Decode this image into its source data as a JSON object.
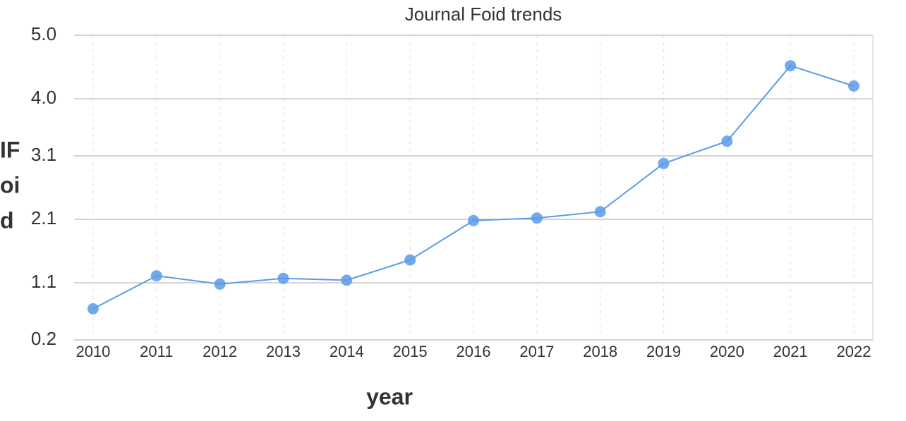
{
  "chart_data": {
    "type": "line",
    "title": "Journal Foid trends",
    "x_label": "year",
    "y_label_lines": [
      "IF",
      "oi",
      "d"
    ],
    "x": [
      2010,
      2011,
      2012,
      2013,
      2014,
      2015,
      2016,
      2017,
      2018,
      2019,
      2020,
      2021,
      2022
    ],
    "series": [
      {
        "name": "IF",
        "color": "#5b9be8",
        "values": [
          0.69,
          1.21,
          1.08,
          1.17,
          1.14,
          1.46,
          2.08,
          2.12,
          2.22,
          2.98,
          3.33,
          4.52,
          4.2
        ]
      }
    ],
    "xlim": [
      2009.7,
      2022.3
    ],
    "xticks": [
      2010,
      2011,
      2012,
      2013,
      2014,
      2015,
      2016,
      2017,
      2018,
      2019,
      2020,
      2021,
      2022
    ],
    "ylim": [
      0.2,
      5.0
    ],
    "yticks": [
      0.2,
      1.1,
      2.1,
      3.1,
      {
        "value": 4,
        "label": "4.0"
      },
      {
        "value": 5,
        "label": "5.0"
      }
    ],
    "grid": true
  }
}
